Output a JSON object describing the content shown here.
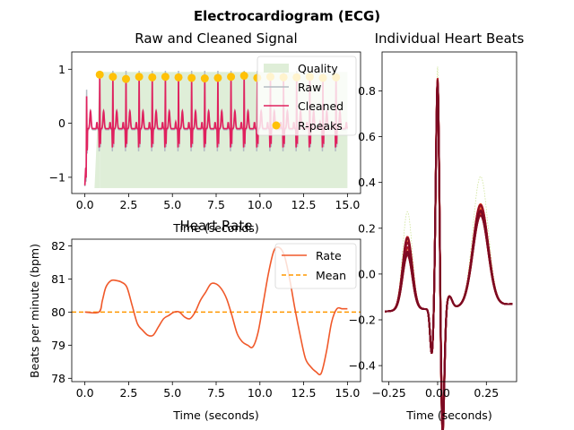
{
  "figure": {
    "suptitle": "Electrocardiogram (ECG)"
  },
  "chart_data": [
    {
      "type": "line",
      "title": "Raw and Cleaned Signal",
      "xlabel": "Time (seconds)",
      "ylabel": "",
      "xlim": [
        -0.75,
        15.75
      ],
      "ylim": [
        -1.3,
        1.32
      ],
      "xticks": [
        "0.0",
        "2.5",
        "5.0",
        "7.5",
        "10.0",
        "12.5",
        "15.0"
      ],
      "xtick_values": [
        0,
        2.5,
        5,
        7.5,
        10,
        12.5,
        15
      ],
      "yticks": [
        "−1",
        "0",
        "1"
      ],
      "ytick_values": [
        -1,
        0,
        1
      ],
      "grid": false,
      "legend_position": "top-right",
      "beat_period": 0.75,
      "first_beat": 0.1,
      "series": [
        {
          "name": "Quality",
          "kind": "area",
          "color": "#dfeed8",
          "x_start": 0.85,
          "x_end": 15.0,
          "quality_level": 0.95
        },
        {
          "name": "Raw",
          "kind": "line",
          "color": "#b4bcc4"
        },
        {
          "name": "Cleaned",
          "kind": "line",
          "color": "#e0215e"
        },
        {
          "name": "R-peaks",
          "kind": "scatter",
          "color": "#ffc107",
          "x": [
            0.85,
            1.6,
            2.35,
            3.1,
            3.85,
            4.6,
            5.35,
            6.1,
            6.85,
            7.6,
            8.35,
            9.1,
            9.85,
            10.6,
            11.35,
            12.1,
            12.85,
            13.6,
            14.35
          ],
          "y": [
            0.9,
            0.86,
            0.82,
            0.86,
            0.85,
            0.86,
            0.85,
            0.84,
            0.83,
            0.84,
            0.86,
            0.88,
            0.84,
            0.86,
            0.85,
            0.85,
            0.86,
            0.84,
            0.85
          ]
        }
      ]
    },
    {
      "type": "line",
      "title": "Heart Rate",
      "xlabel": "Time (seconds)",
      "ylabel": "Beats per minute (bpm)",
      "xlim": [
        -0.75,
        15.75
      ],
      "ylim": [
        77.9,
        82.2
      ],
      "xticks": [
        "0.0",
        "2.5",
        "5.0",
        "7.5",
        "10.0",
        "12.5",
        "15.0"
      ],
      "xtick_values": [
        0,
        2.5,
        5,
        7.5,
        10,
        12.5,
        15
      ],
      "yticks": [
        "78",
        "79",
        "80",
        "81",
        "82"
      ],
      "ytick_values": [
        78,
        79,
        80,
        81,
        82
      ],
      "grid": false,
      "legend_position": "top-right",
      "series": [
        {
          "name": "Rate",
          "color": "#f0592a",
          "x": [
            0,
            0.8,
            1.0,
            1.2,
            1.5,
            1.8,
            2.1,
            2.4,
            2.7,
            3.0,
            3.3,
            3.6,
            3.9,
            4.2,
            4.5,
            4.8,
            5.1,
            5.4,
            5.7,
            6.0,
            6.3,
            6.6,
            6.9,
            7.2,
            7.5,
            7.8,
            8.1,
            8.4,
            8.7,
            9.0,
            9.3,
            9.6,
            9.9,
            10.2,
            10.5,
            10.8,
            11.1,
            11.4,
            11.7,
            12.0,
            12.3,
            12.6,
            12.9,
            13.2,
            13.5,
            13.8,
            14.1,
            14.4,
            14.7,
            15.0
          ],
          "y": [
            80.0,
            80.0,
            80.35,
            80.75,
            80.95,
            80.95,
            80.9,
            80.75,
            80.2,
            79.65,
            79.45,
            79.3,
            79.3,
            79.55,
            79.8,
            79.9,
            80.0,
            80.0,
            79.85,
            79.8,
            80.0,
            80.35,
            80.6,
            80.85,
            80.85,
            80.7,
            80.4,
            79.9,
            79.35,
            79.1,
            79.0,
            78.95,
            79.4,
            80.3,
            81.2,
            81.85,
            81.95,
            81.7,
            81.0,
            80.1,
            79.3,
            78.6,
            78.35,
            78.2,
            78.15,
            78.8,
            79.7,
            80.1,
            80.1,
            80.1
          ]
        },
        {
          "name": "Mean",
          "color": "#ff9800",
          "dashed": true,
          "value": 80.0
        }
      ]
    },
    {
      "type": "line",
      "title": "Individual Heart Beats",
      "xlabel": "Time (seconds)",
      "ylabel": "",
      "xlim": [
        -0.285,
        0.405
      ],
      "ylim": [
        -0.47,
        0.97
      ],
      "xticks": [
        "−0.25",
        "0.00",
        "0.25"
      ],
      "xtick_values": [
        -0.25,
        0,
        0.25
      ],
      "yticks": [
        "−0.4",
        "−0.2",
        "0.0",
        "0.2",
        "0.4",
        "0.6",
        "0.8"
      ],
      "ytick_values": [
        -0.4,
        -0.2,
        0.0,
        0.2,
        0.4,
        0.6,
        0.8
      ],
      "grid": false,
      "beat_count": 19,
      "beat_colors": [
        "#fce28c",
        "#f8b04c",
        "#f48c38",
        "#f0632b",
        "#e8452a",
        "#dc3424",
        "#cc2424",
        "#bc1c24",
        "#a81424",
        "#950f24",
        "#850c24",
        "#7a0a22"
      ]
    }
  ]
}
